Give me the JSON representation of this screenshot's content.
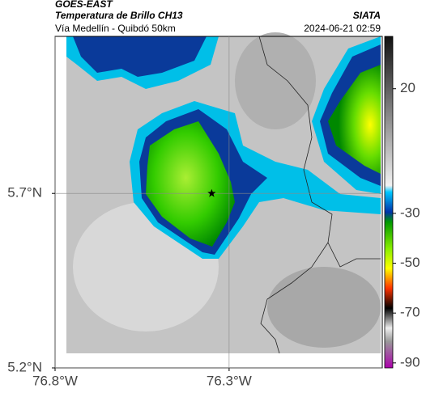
{
  "header": {
    "source": "GOES-EAST",
    "title": "Temperatura de Brillo CH13",
    "subtitle": "Vía Medellín - Quibdó 50km",
    "agency": "SIATA",
    "datetime": "2024-06-21 02:59"
  },
  "map": {
    "xlim": [
      -76.8,
      -75.86
    ],
    "ylim": [
      5.2,
      6.15
    ],
    "xticks": [
      {
        "value": -76.8,
        "label": "76.8°W"
      },
      {
        "value": -76.3,
        "label": "76.3°W"
      }
    ],
    "yticks": [
      {
        "value": 5.7,
        "label": "5.7°N"
      },
      {
        "value": 5.2,
        "label": "5.2°N"
      }
    ],
    "grid": true,
    "marker": {
      "lon": -76.35,
      "lat": 5.7
    }
  },
  "colorbar": {
    "range": [
      -92,
      41
    ],
    "ticks": [
      20,
      -30,
      -50,
      -70,
      -90
    ]
  }
}
